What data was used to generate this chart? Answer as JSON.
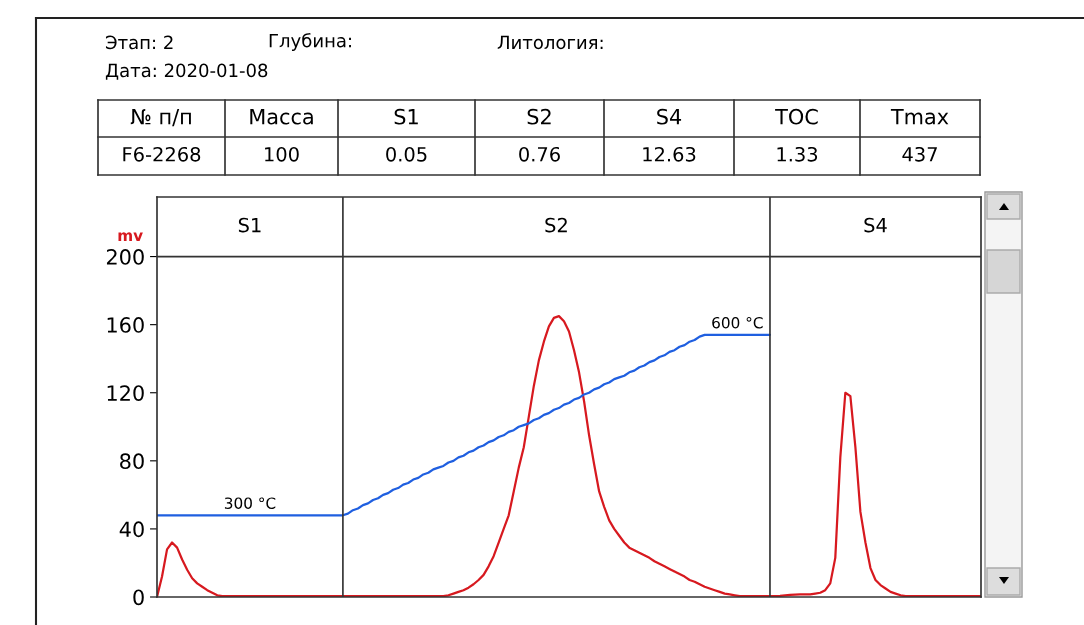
{
  "chart_data": {
    "type": "line",
    "ylabel": "mv",
    "categories": [
      null,
      null,
      null,
      null,
      null,
      null,
      null,
      null,
      null,
      null,
      null,
      null,
      null,
      null,
      null,
      null,
      null,
      null,
      null,
      null,
      null,
      null,
      null,
      null,
      null,
      null,
      null,
      null,
      null,
      null,
      null,
      null,
      null,
      null,
      null,
      null,
      null,
      null,
      null,
      null,
      null,
      null,
      null,
      null,
      null,
      null,
      null,
      null,
      null,
      null,
      null,
      null,
      null,
      null,
      null,
      null,
      null,
      null,
      null,
      null,
      null,
      null,
      null,
      null,
      null,
      null,
      null,
      null,
      null,
      null,
      null,
      null,
      null,
      null,
      null,
      null,
      null,
      null,
      null,
      null,
      null,
      null,
      null,
      null,
      null,
      null,
      null,
      null,
      null,
      null,
      null,
      null,
      null,
      null,
      null,
      null,
      null,
      null,
      null,
      null,
      null,
      null,
      null,
      null,
      null,
      null,
      null,
      null,
      null,
      null,
      null,
      null,
      null,
      null,
      null,
      null,
      null,
      null,
      null,
      null,
      null,
      null,
      null,
      null,
      null,
      null,
      null,
      null,
      null,
      null,
      null,
      null,
      null,
      null,
      null,
      null,
      null,
      null,
      null,
      null,
      null,
      null,
      null,
      null,
      null,
      null,
      null,
      null,
      null,
      null,
      null,
      null,
      null,
      null,
      null,
      null,
      null,
      null,
      null,
      null,
      null,
      null,
      null,
      null,
      null
    ],
    "series": [
      {
        "color": "#d7191f",
        "values": [
          0,
          12,
          28,
          32,
          29,
          22,
          16,
          11,
          8,
          6,
          4,
          2.5,
          1,
          0.5,
          0.5,
          0.5,
          0.5,
          0.5,
          0.5,
          0.5,
          0.5,
          0.5,
          0.5,
          0.5,
          0.5,
          0.5,
          0.5,
          0.5,
          0.5,
          0.5,
          0.5,
          0.5,
          0.5,
          0.5,
          0.5,
          0.5,
          0.5,
          0.5,
          0.5,
          0.5,
          0.5,
          0.5,
          0.5,
          0.5,
          0.5,
          0.5,
          0.5,
          0.5,
          0.5,
          0.5,
          0.5,
          0.5,
          0.5,
          0.5,
          0.5,
          0.5,
          0.5,
          0.5,
          1,
          2,
          3,
          4,
          5.5,
          7.5,
          10,
          13,
          18,
          24,
          32,
          40,
          48,
          62,
          76,
          88,
          106,
          124,
          139,
          150,
          159,
          164,
          165,
          162,
          156,
          145,
          132,
          115,
          95,
          78,
          62,
          53,
          45,
          40,
          36,
          32,
          29,
          27.5,
          26,
          24.5,
          23,
          21,
          19.5,
          18,
          16.5,
          15,
          13.5,
          12,
          10,
          9,
          7.5,
          6,
          5,
          4,
          3,
          2,
          1.5,
          1,
          0.5,
          0.5,
          0.5,
          0.5,
          0.5,
          0.5,
          0.5,
          0.5,
          0.7,
          1,
          1.2,
          1.4,
          1.5,
          1.5,
          1.5,
          2,
          2.5,
          4,
          8,
          23,
          82,
          120,
          118,
          88,
          50,
          32,
          17,
          10,
          7,
          5,
          3,
          2,
          1,
          0.5,
          0.5,
          0.5,
          0.5,
          0.5,
          0.5,
          0.5,
          0.5,
          0.5,
          0.5,
          0.5,
          0.5,
          0.5,
          0.5,
          0.5,
          0.5
        ]
      },
      {
        "color": "#1f5fe0",
        "values": [
          48,
          48,
          48,
          48,
          48,
          48,
          48,
          48,
          48,
          48,
          48,
          48,
          48,
          48,
          48,
          48,
          48,
          48,
          48,
          48,
          48,
          48,
          48,
          48,
          48,
          48,
          48,
          48,
          48,
          48,
          48,
          48,
          48,
          48,
          48,
          48,
          48,
          48,
          49,
          51,
          52,
          54,
          55,
          57,
          58,
          60,
          61,
          63,
          64,
          66,
          67,
          69,
          70,
          72,
          73,
          75,
          76,
          77,
          79,
          80,
          82,
          83,
          85,
          86,
          88,
          89,
          91,
          92,
          94,
          95,
          97,
          98,
          100,
          101,
          102,
          104,
          105,
          107,
          108,
          110,
          111,
          113,
          114,
          116,
          117,
          119,
          120,
          122,
          123,
          125,
          126,
          128,
          129,
          130,
          132,
          133,
          135,
          136,
          138,
          139,
          141,
          142,
          144,
          145,
          147,
          148,
          150,
          151,
          153,
          154,
          154,
          154,
          154,
          154,
          154,
          154,
          154,
          154,
          154,
          154,
          154,
          154,
          154,
          null,
          null,
          null,
          null,
          null,
          null,
          null,
          null,
          null,
          null,
          null,
          null,
          null,
          null,
          null,
          null,
          null,
          null,
          null,
          null,
          null,
          null,
          null,
          null,
          null,
          null,
          null,
          null,
          null,
          null,
          null,
          null,
          null,
          null,
          null,
          null,
          null,
          null,
          null,
          null,
          null,
          null
        ]
      }
    ],
    "ylim": [
      0,
      235
    ],
    "yticks": [
      0,
      40,
      80,
      120,
      160,
      200
    ],
    "ref_lines": [
      {
        "axis": "y",
        "value": 200,
        "color": "#333333"
      }
    ],
    "annotations": [
      "Этап: 2",
      "Глубина:",
      "Литология:",
      "Дата: 2020-01-08",
      "№ п/п",
      "Масса",
      "S1",
      "S2",
      "S4",
      "TOC",
      "Tmax",
      "F6-2268",
      "100",
      "0.05",
      "0.76",
      "12.63",
      "1.33",
      "437",
      "300 °C",
      "600 °C",
      "S1",
      "S2",
      "S4"
    ],
    "grid": false,
    "legend": false,
    "tick_labels": "y",
    "marker": "none",
    "line_style": "solid"
  }
}
